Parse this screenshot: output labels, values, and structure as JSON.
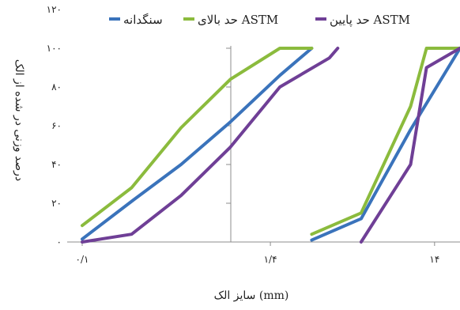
{
  "chart_data": {
    "type": "line",
    "xlabel": "سایز الک (mm)",
    "ylabel": "درصد وزنی در شده از الک",
    "x_ticks": [
      "۰/۱",
      "۱/۴",
      "۱۴"
    ],
    "y_ticks": [
      "۰",
      "۲۰",
      "۴۰",
      "۶۰",
      "۸۰",
      "۱۰۰",
      "۱۲۰"
    ],
    "ylim": [
      0,
      120
    ],
    "x_scale": "log",
    "xlim": [
      0.1,
      20
    ],
    "x_tick_values": [
      0.1,
      1.4,
      14
    ],
    "grid": false,
    "legend_position": "top",
    "series": [
      {
        "name": "سنگدانه",
        "color": "#3a73bb",
        "x": [
          0.1,
          0.2,
          0.4,
          0.8,
          1.6,
          2.5,
          2.5,
          5,
          10,
          20
        ],
        "y": [
          1.5,
          21,
          40,
          62,
          86,
          100,
          1,
          12,
          58,
          100
        ]
      },
      {
        "name": "حد بالای ASTM",
        "color": "#8bbb3d",
        "x": [
          0.1,
          0.2,
          0.4,
          0.8,
          1.6,
          2.5,
          2.5,
          5,
          10,
          12.5,
          20
        ],
        "y": [
          8.5,
          28,
          59,
          84,
          100,
          100,
          4,
          15,
          70,
          100,
          100
        ]
      },
      {
        "name": "حد پایین ASTM",
        "color": "#6f3f96",
        "x": [
          0.1,
          0.2,
          0.4,
          0.8,
          1.6,
          3.2,
          3.6,
          5,
          10,
          12.5,
          20
        ],
        "y": [
          0,
          4,
          24,
          49,
          80,
          95,
          100,
          0,
          40,
          90,
          100
        ]
      }
    ]
  }
}
